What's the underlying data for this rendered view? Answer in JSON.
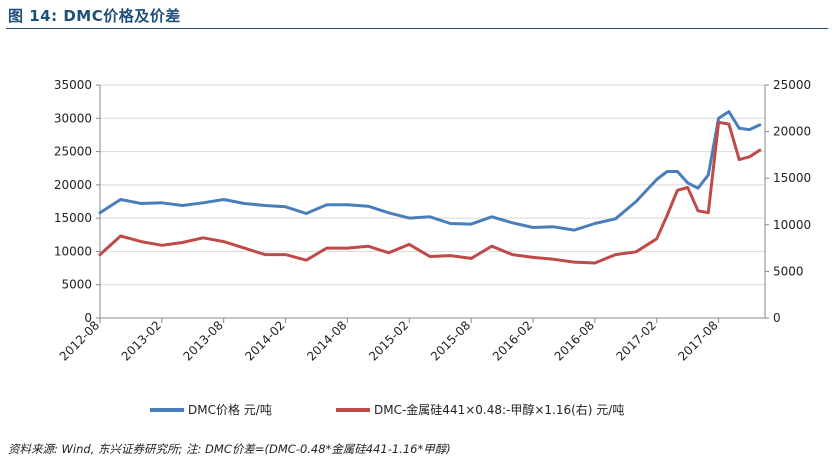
{
  "figure": {
    "title": "图 14:  DMC价格及价差",
    "source": "资料来源: Wind, 东兴证券研究所; 注: DMC价差=(DMC-0.48*金属硅441-1.16*甲醇)"
  },
  "colors": {
    "series1": "#4a7ebb",
    "series2": "#be4b48",
    "axis": "#888888",
    "grid": "#d9d9d9",
    "title": "#1f4e79"
  },
  "chart_data": {
    "type": "line",
    "title": "",
    "grid": true,
    "legend_position": "bottom",
    "y_left": {
      "lim": [
        0,
        35000
      ],
      "ticks": [
        "0",
        "5000",
        "10000",
        "15000",
        "20000",
        "25000",
        "30000",
        "35000"
      ]
    },
    "y_right": {
      "lim": [
        0,
        25000
      ],
      "ticks": [
        "0",
        "5000",
        "10000",
        "15000",
        "20000",
        "25000"
      ]
    },
    "x_ticks": [
      "2012-08",
      "2013-02",
      "2013-08",
      "2014-02",
      "2014-08",
      "2015-02",
      "2015-08",
      "2016-02",
      "2016-08",
      "2017-02",
      "2017-08"
    ],
    "series": [
      {
        "name": "DMC价格 元/吨",
        "axis": "left",
        "x": [
          "2012-08",
          "2012-10",
          "2012-12",
          "2013-02",
          "2013-04",
          "2013-06",
          "2013-08",
          "2013-10",
          "2013-12",
          "2014-02",
          "2014-04",
          "2014-06",
          "2014-08",
          "2014-10",
          "2014-12",
          "2015-02",
          "2015-04",
          "2015-06",
          "2015-08",
          "2015-10",
          "2015-12",
          "2016-02",
          "2016-04",
          "2016-06",
          "2016-08",
          "2016-10",
          "2016-12",
          "2017-02",
          "2017-03",
          "2017-04",
          "2017-05",
          "2017-06",
          "2017-07",
          "2017-08",
          "2017-09",
          "2017-10",
          "2017-11",
          "2017-12"
        ],
        "y": [
          15800,
          17800,
          17200,
          17300,
          16900,
          17300,
          17800,
          17200,
          16900,
          16700,
          15700,
          17000,
          17000,
          16800,
          15800,
          15000,
          15200,
          14200,
          14100,
          15200,
          14300,
          13600,
          13700,
          13200,
          14200,
          14900,
          17500,
          20800,
          22000,
          22000,
          20300,
          19500,
          21500,
          30000,
          31000,
          28500,
          28300,
          29000
        ]
      },
      {
        "name": "DMC-金属硅441×0.48:-甲醇×1.16(右) 元/吨",
        "axis": "right",
        "x": [
          "2012-08",
          "2012-10",
          "2012-12",
          "2013-02",
          "2013-04",
          "2013-06",
          "2013-08",
          "2013-10",
          "2013-12",
          "2014-02",
          "2014-04",
          "2014-06",
          "2014-08",
          "2014-10",
          "2014-12",
          "2015-02",
          "2015-04",
          "2015-06",
          "2015-08",
          "2015-10",
          "2015-12",
          "2016-02",
          "2016-04",
          "2016-06",
          "2016-08",
          "2016-10",
          "2016-12",
          "2017-02",
          "2017-03",
          "2017-04",
          "2017-05",
          "2017-06",
          "2017-07",
          "2017-08",
          "2017-09",
          "2017-10",
          "2017-11",
          "2017-12"
        ],
        "y": [
          6800,
          8800,
          8200,
          7800,
          8100,
          8600,
          8200,
          7500,
          6800,
          6800,
          6200,
          7500,
          7500,
          7700,
          7000,
          7900,
          6600,
          6700,
          6400,
          7700,
          6800,
          6500,
          6300,
          6000,
          5900,
          6800,
          7100,
          8500,
          11000,
          13700,
          14000,
          11500,
          11300,
          21000,
          20800,
          17000,
          17300,
          18000
        ]
      }
    ]
  }
}
